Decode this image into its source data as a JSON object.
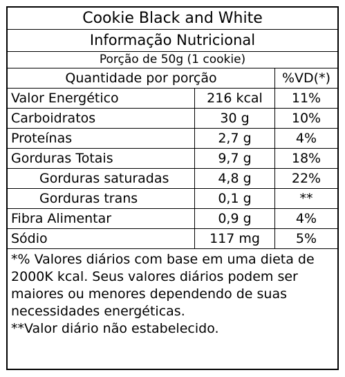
{
  "product_name": "Cookie Black and White",
  "panel_title": "Informação Nutricional",
  "serving": "Porção de 50g (1 cookie)",
  "header": {
    "quantity": "Quantidade por porção",
    "dv": "%VD(*)"
  },
  "nutrients": [
    {
      "name": "Valor Energético",
      "amount": "216 kcal",
      "dv": "11%"
    },
    {
      "name": "Carboidratos",
      "amount": "30 g",
      "dv": "10%"
    },
    {
      "name": "Proteínas",
      "amount": "2,7 g",
      "dv": "4%"
    },
    {
      "name": "Gorduras Totais",
      "amount": "9,7 g",
      "dv": "18%"
    },
    {
      "name": "Gorduras saturadas",
      "amount": "4,8 g",
      "dv": "22%"
    },
    {
      "name": "Gorduras trans",
      "amount": "0,1 g",
      "dv": "**"
    },
    {
      "name": "Fibra Alimentar",
      "amount": "0,9 g",
      "dv": "4%"
    },
    {
      "name": "Sódio",
      "amount": "117 mg",
      "dv": "5%"
    }
  ],
  "footnotes": {
    "daily_values": "*% Valores diários com base em uma dieta de 2000K kcal. Seus valores diários podem ser maiores ou menores dependendo de suas necessidades energéticas.",
    "not_established": "**Valor diário não estabelecido."
  }
}
